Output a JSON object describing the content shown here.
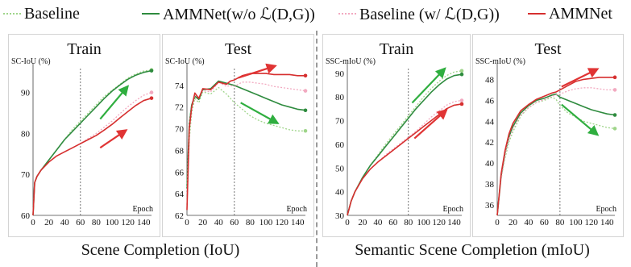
{
  "legend": [
    {
      "label": "Baseline",
      "color": "#9fd58a",
      "dash": "dotted"
    },
    {
      "label": "AMMNet(w/o ℒ(D,G))",
      "color": "#2e8b3e",
      "dash": "solid"
    },
    {
      "label": "Baseline (w/ ℒ(D,G))",
      "color": "#f2a9c0",
      "dash": "dotted"
    },
    {
      "label": "AMMNet",
      "color": "#d62f2f",
      "dash": "solid"
    }
  ],
  "captions": {
    "left": "Scene Completion (IoU)",
    "right": "Semantic Scene Completion (mIoU)"
  },
  "colors": {
    "baseline": "#9fd58a",
    "ammnet_wo": "#2e8b3e",
    "baseline_w": "#f2a9c0",
    "ammnet": "#d62f2f",
    "arrow_green": "#2fae3f",
    "arrow_red": "#e03434"
  },
  "chart_data": [
    {
      "type": "line",
      "title": "Train",
      "ylabel": "SC-IoU (%)",
      "xlabel": "Epoch",
      "xlim": [
        0,
        150
      ],
      "ylim": [
        60,
        97
      ],
      "xticks": [
        0,
        20,
        40,
        60,
        80,
        100,
        120,
        140
      ],
      "yticks": [
        60,
        70,
        80,
        90
      ],
      "vline": 60,
      "grid": false,
      "series": [
        {
          "name": "Baseline",
          "x": [
            0,
            2,
            5,
            10,
            20,
            30,
            40,
            50,
            60,
            70,
            80,
            90,
            100,
            110,
            120,
            130,
            140,
            150
          ],
          "y": [
            60,
            68,
            69.5,
            71,
            73.5,
            76,
            78.5,
            81,
            83,
            85,
            87,
            89,
            90.5,
            92,
            93.5,
            94.5,
            95.2,
            95.5
          ]
        },
        {
          "name": "AMMNet(w/o ℒ(D,G))",
          "x": [
            0,
            2,
            5,
            10,
            20,
            30,
            40,
            50,
            60,
            70,
            80,
            90,
            100,
            110,
            120,
            130,
            140,
            150
          ],
          "y": [
            60,
            68,
            69.5,
            71,
            73.5,
            76,
            78.5,
            80.5,
            82.5,
            84.5,
            86.5,
            88.5,
            90.3,
            91.8,
            93.2,
            94.2,
            94.9,
            95.3
          ]
        },
        {
          "name": "Baseline (w/ ℒ(D,G))",
          "x": [
            0,
            2,
            5,
            10,
            20,
            30,
            40,
            50,
            60,
            70,
            80,
            90,
            100,
            110,
            120,
            130,
            140,
            150
          ],
          "y": [
            60,
            68,
            69.5,
            71,
            73,
            74.5,
            75.5,
            76.5,
            77.5,
            78.8,
            80,
            81.5,
            83,
            84.8,
            86.5,
            88,
            89.3,
            90
          ]
        },
        {
          "name": "AMMNet",
          "x": [
            0,
            2,
            5,
            10,
            20,
            30,
            40,
            50,
            60,
            70,
            80,
            90,
            100,
            110,
            120,
            130,
            140,
            150
          ],
          "y": [
            60,
            68,
            69.5,
            71,
            73,
            74.5,
            75.5,
            76.5,
            77.5,
            78.5,
            79.5,
            80.8,
            82.2,
            83.8,
            85.3,
            86.8,
            88,
            88.6
          ]
        }
      ],
      "arrows": [
        {
          "color": "green",
          "from": [
            85,
            83.5
          ],
          "to": [
            120,
            91.5
          ]
        },
        {
          "color": "red",
          "from": [
            85,
            76.5
          ],
          "to": [
            118,
            80.8
          ]
        }
      ]
    },
    {
      "type": "line",
      "title": "Test",
      "ylabel": "SC-IoU (%)",
      "xlabel": "Epoch",
      "xlim": [
        0,
        150
      ],
      "ylim": [
        62,
        76
      ],
      "xticks": [
        0,
        20,
        40,
        60,
        80,
        100,
        120,
        140
      ],
      "yticks": [
        62,
        64,
        66,
        68,
        70,
        72,
        74
      ],
      "vline": 60,
      "grid": false,
      "series": [
        {
          "name": "Baseline",
          "x": [
            0,
            3,
            6,
            10,
            15,
            20,
            30,
            40,
            50,
            55,
            60,
            70,
            80,
            90,
            100,
            110,
            120,
            130,
            140,
            150
          ],
          "y": [
            63,
            69,
            71.5,
            72.8,
            72.4,
            73.4,
            73.2,
            73.8,
            73.2,
            72.8,
            72.4,
            71.8,
            71.2,
            70.8,
            70.5,
            70.3,
            70.1,
            69.9,
            69.8,
            69.8
          ]
        },
        {
          "name": "AMMNet(w/o ℒ(D,G))",
          "x": [
            0,
            3,
            6,
            10,
            15,
            20,
            30,
            40,
            50,
            55,
            60,
            70,
            80,
            90,
            100,
            110,
            120,
            130,
            140,
            150
          ],
          "y": [
            64.5,
            70.5,
            72.2,
            73,
            72.7,
            73.6,
            73.7,
            74.4,
            74.2,
            74.1,
            74,
            73.7,
            73.4,
            73.1,
            72.8,
            72.5,
            72.2,
            72,
            71.8,
            71.7
          ]
        },
        {
          "name": "Baseline (w/ ℒ(D,G))",
          "x": [
            0,
            3,
            6,
            10,
            15,
            20,
            30,
            40,
            50,
            55,
            60,
            70,
            80,
            90,
            100,
            110,
            120,
            130,
            140,
            150
          ],
          "y": [
            64,
            70.5,
            72,
            73.1,
            72.9,
            73.5,
            73.4,
            74.3,
            73.9,
            74,
            73.9,
            74.3,
            74.3,
            74.2,
            74.1,
            73.9,
            73.8,
            73.7,
            73.6,
            73.5
          ]
        },
        {
          "name": "AMMNet",
          "x": [
            0,
            3,
            6,
            10,
            15,
            20,
            30,
            40,
            50,
            55,
            60,
            70,
            80,
            90,
            100,
            110,
            120,
            130,
            140,
            150
          ],
          "y": [
            62.5,
            70,
            72,
            73.3,
            72.8,
            73.7,
            73.6,
            74.3,
            74.1,
            74.4,
            74.5,
            74.9,
            75.1,
            75.1,
            75.1,
            75,
            75,
            75,
            74.9,
            74.9
          ]
        }
      ],
      "arrows": [
        {
          "color": "red",
          "from": [
            65,
            74.7
          ],
          "to": [
            112,
            75.8
          ]
        },
        {
          "color": "green",
          "from": [
            68,
            72.4
          ],
          "to": [
            115,
            70.5
          ]
        }
      ]
    },
    {
      "type": "line",
      "title": "Train",
      "ylabel": "SSC-mIoU (%)",
      "xlabel": "Epoch",
      "xlim": [
        0,
        150
      ],
      "ylim": [
        30,
        94
      ],
      "xticks": [
        0,
        20,
        40,
        60,
        80,
        100,
        120,
        140
      ],
      "yticks": [
        30,
        40,
        50,
        60,
        70,
        80,
        90
      ],
      "vline": 80,
      "grid": false,
      "series": [
        {
          "name": "Baseline",
          "x": [
            0,
            5,
            10,
            20,
            30,
            40,
            50,
            60,
            70,
            80,
            90,
            100,
            110,
            120,
            130,
            140,
            150
          ],
          "y": [
            30,
            36,
            40,
            46,
            51,
            55.5,
            60,
            64,
            68,
            72,
            76,
            80,
            83.5,
            86.5,
            89,
            90.5,
            91
          ]
        },
        {
          "name": "AMMNet(w/o ℒ(D,G))",
          "x": [
            0,
            5,
            10,
            20,
            30,
            40,
            50,
            60,
            70,
            80,
            90,
            100,
            110,
            120,
            130,
            140,
            150
          ],
          "y": [
            30,
            36,
            40,
            46,
            51,
            55,
            59,
            63,
            67,
            71,
            75,
            78.5,
            82,
            85,
            87.5,
            89,
            89.5
          ]
        },
        {
          "name": "Baseline (w/ ℒ(D,G))",
          "x": [
            0,
            5,
            10,
            20,
            30,
            40,
            50,
            60,
            70,
            80,
            90,
            100,
            110,
            120,
            130,
            140,
            150
          ],
          "y": [
            30,
            36,
            40,
            45.5,
            49.5,
            52.5,
            55.5,
            58,
            60.5,
            63,
            65.5,
            68.5,
            71.5,
            74,
            76.5,
            78,
            78.5
          ]
        },
        {
          "name": "AMMNet",
          "x": [
            0,
            5,
            10,
            20,
            30,
            40,
            50,
            60,
            70,
            80,
            90,
            100,
            110,
            120,
            130,
            140,
            150
          ],
          "y": [
            30,
            36,
            40,
            45.5,
            49.5,
            52.5,
            55,
            57.5,
            60,
            62.5,
            65,
            67.5,
            70,
            72.5,
            75,
            76.5,
            77
          ]
        }
      ],
      "arrows": [
        {
          "color": "green",
          "from": [
            85,
            77.5
          ],
          "to": [
            128,
            92
          ]
        },
        {
          "color": "red",
          "from": [
            88,
            62.5
          ],
          "to": [
            130,
            74.5
          ]
        }
      ]
    },
    {
      "type": "line",
      "title": "Test",
      "ylabel": "SSC-mIoU (%)",
      "xlabel": "Epoch",
      "xlim": [
        0,
        150
      ],
      "ylim": [
        35,
        49.5
      ],
      "xticks": [
        0,
        20,
        40,
        60,
        80,
        100,
        120,
        140
      ],
      "yticks": [
        36,
        38,
        40,
        42,
        44,
        46,
        48
      ],
      "vline": 80,
      "grid": false,
      "series": [
        {
          "name": "Baseline",
          "x": [
            0,
            5,
            10,
            15,
            20,
            30,
            40,
            50,
            60,
            70,
            75,
            80,
            90,
            100,
            110,
            120,
            130,
            140,
            150
          ],
          "y": [
            35,
            38.5,
            40.5,
            42,
            43,
            44.5,
            45.3,
            45.8,
            46,
            46.3,
            46.1,
            45.5,
            44.8,
            44.4,
            44,
            43.8,
            43.6,
            43.4,
            43.3
          ]
        },
        {
          "name": "AMMNet(w/o ℒ(D,G))",
          "x": [
            0,
            5,
            10,
            15,
            20,
            30,
            40,
            50,
            60,
            70,
            75,
            80,
            90,
            100,
            110,
            120,
            130,
            140,
            150
          ],
          "y": [
            35,
            38.8,
            41,
            42.5,
            43.5,
            44.8,
            45.5,
            46,
            46.2,
            46.5,
            46.6,
            46.3,
            46,
            45.7,
            45.4,
            45.1,
            44.9,
            44.7,
            44.6
          ]
        },
        {
          "name": "Baseline (w/ ℒ(D,G))",
          "x": [
            0,
            5,
            10,
            15,
            20,
            30,
            40,
            50,
            60,
            70,
            75,
            80,
            90,
            100,
            110,
            120,
            130,
            140,
            150
          ],
          "y": [
            35,
            38.5,
            40.8,
            42.3,
            43.3,
            44.6,
            45.3,
            45.8,
            46.1,
            46.4,
            46.5,
            46.6,
            46.9,
            47.1,
            47.2,
            47.2,
            47.1,
            47,
            47
          ]
        },
        {
          "name": "AMMNet",
          "x": [
            0,
            5,
            10,
            15,
            20,
            30,
            40,
            50,
            60,
            70,
            75,
            80,
            90,
            100,
            110,
            120,
            130,
            140,
            150
          ],
          "y": [
            35,
            39,
            41.2,
            42.8,
            43.8,
            45,
            45.6,
            46.1,
            46.4,
            46.7,
            46.8,
            47,
            47.4,
            47.8,
            48,
            48.1,
            48.2,
            48.2,
            48.2
          ]
        }
      ],
      "arrows": [
        {
          "color": "red",
          "from": [
            82,
            47.3
          ],
          "to": [
            128,
            49
          ]
        },
        {
          "color": "green",
          "from": [
            82,
            45.6
          ],
          "to": [
            128,
            42.7
          ]
        }
      ]
    }
  ]
}
